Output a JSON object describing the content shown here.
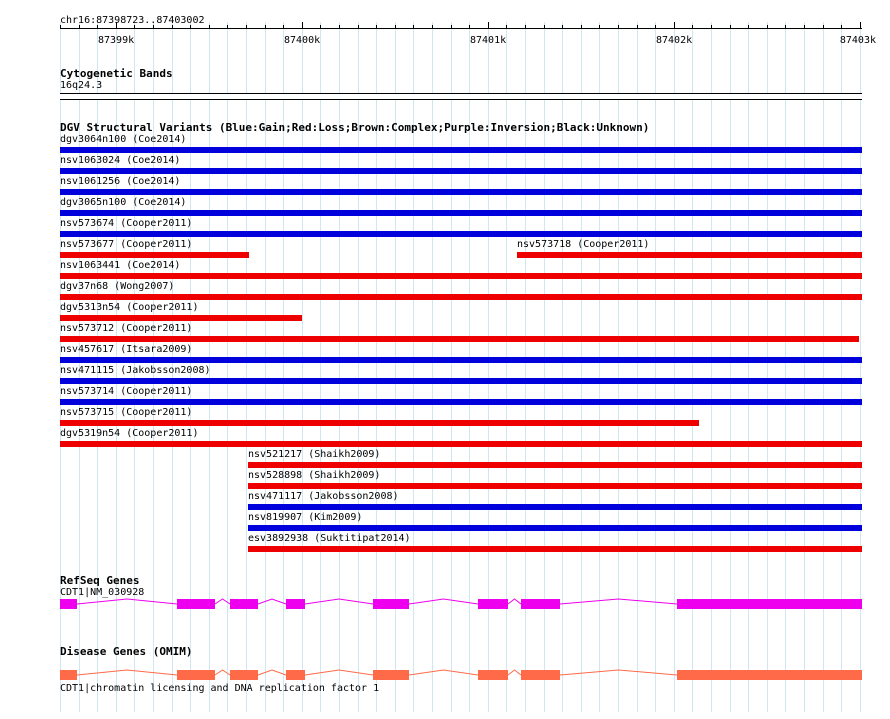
{
  "ruler": {
    "location": "chr16:87398723..87403002",
    "ticks": [
      "87399k",
      "87400k",
      "87401k",
      "87402k",
      "87403k"
    ]
  },
  "cytoband": {
    "title": "Cytogenetic Bands",
    "band": "16q24.3"
  },
  "dgv": {
    "title": "DGV Structural Variants (Blue:Gain;Red:Loss;Brown:Complex;Purple:Inversion;Black:Unknown)",
    "colors": {
      "gain": "#0000dd",
      "loss": "#ee0000"
    },
    "features": [
      {
        "label": "dgv3064n100 (Coe2014)",
        "type": "gain"
      },
      {
        "label": "nsv1063024 (Coe2014)",
        "type": "gain"
      },
      {
        "label": "nsv1061256 (Coe2014)",
        "type": "gain"
      },
      {
        "label": "dgv3065n100 (Coe2014)",
        "type": "gain"
      },
      {
        "label": "nsv573674 (Cooper2011)",
        "type": "gain"
      },
      {
        "label": "nsv573677 (Cooper2011)",
        "type": "loss"
      },
      {
        "label": "nsv573718 (Cooper2011)",
        "type": "loss"
      },
      {
        "label": "nsv1063441 (Coe2014)",
        "type": "loss"
      },
      {
        "label": "dgv37n68 (Wong2007)",
        "type": "loss"
      },
      {
        "label": "dgv5313n54 (Cooper2011)",
        "type": "loss"
      },
      {
        "label": "nsv573712 (Cooper2011)",
        "type": "loss"
      },
      {
        "label": "nsv457617 (Itsara2009)",
        "type": "gain"
      },
      {
        "label": "nsv471115 (Jakobsson2008)",
        "type": "gain"
      },
      {
        "label": "nsv573714 (Cooper2011)",
        "type": "gain"
      },
      {
        "label": "nsv573715 (Cooper2011)",
        "type": "loss"
      },
      {
        "label": "dgv5319n54 (Cooper2011)",
        "type": "loss"
      },
      {
        "label": "nsv521217 (Shaikh2009)",
        "type": "loss"
      },
      {
        "label": "nsv528898 (Shaikh2009)",
        "type": "loss"
      },
      {
        "label": "nsv471117 (Jakobsson2008)",
        "type": "gain"
      },
      {
        "label": "nsv819907 (Kim2009)",
        "type": "gain"
      },
      {
        "label": "esv3892938 (Suktitipat2014)",
        "type": "loss"
      }
    ]
  },
  "refseq": {
    "title": "RefSeq Genes",
    "gene_label": "CDT1|NM_030928",
    "color": "#ee00ee"
  },
  "omim": {
    "title": "Disease Genes (OMIM)",
    "gene_label": "CDT1|chromatin licensing and DNA replication factor 1",
    "color": "#ff6a48"
  }
}
